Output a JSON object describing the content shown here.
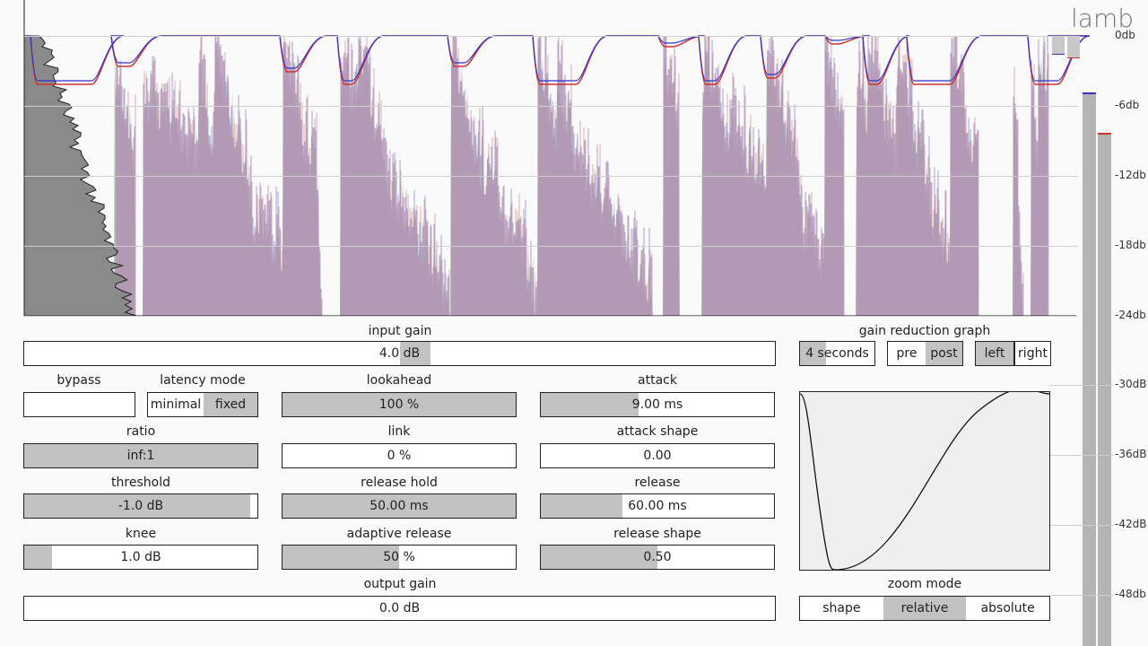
{
  "app_title": "lamb",
  "db_scale": [
    "0db",
    "-6db",
    "-12db",
    "-18db",
    "-24db",
    "-30dB",
    "-36dB",
    "-42dB",
    "-48db"
  ],
  "input_gain": {
    "label": "input gain",
    "value": "4.0 dB",
    "level": 0.52
  },
  "bypass": {
    "label": "bypass",
    "value": ""
  },
  "latency_mode": {
    "label": "latency mode",
    "options": [
      "minimal",
      "fixed"
    ],
    "selected": 1
  },
  "lookahead": {
    "label": "lookahead",
    "value": "100 %",
    "level": 1.0
  },
  "attack": {
    "label": "attack",
    "value": "9.00 ms",
    "level": 0.42
  },
  "ratio": {
    "label": "ratio",
    "value": "inf:1",
    "level": 1.0
  },
  "link": {
    "label": "link",
    "value": "0 %",
    "level": 0.0
  },
  "attack_shape": {
    "label": "attack shape",
    "value": "0.00",
    "level": 0.0
  },
  "threshold": {
    "label": "threshold",
    "value": "-1.0 dB",
    "level": 0.97
  },
  "release_hold": {
    "label": "release hold",
    "value": "50.00 ms",
    "level": 1.0
  },
  "release": {
    "label": "release",
    "value": "60.00 ms",
    "level": 0.35
  },
  "knee": {
    "label": "knee",
    "value": "1.0 dB",
    "level": 0.12
  },
  "adaptive_release": {
    "label": "adaptive release",
    "value": "50 %",
    "level": 0.5
  },
  "release_shape": {
    "label": "release shape",
    "value": "0.50",
    "level": 0.5
  },
  "output_gain": {
    "label": "output gain",
    "value": "0.0 dB",
    "level": 0.0
  },
  "gain_reduction_graph": {
    "label": "gain reduction graph",
    "duration": {
      "label": "4 seconds",
      "level": 0.35
    },
    "prepost": {
      "options": [
        "pre",
        "post"
      ],
      "selected": 1
    },
    "channel": {
      "options": [
        "left",
        "right"
      ],
      "selected": 0
    }
  },
  "zoom_mode": {
    "label": "zoom mode",
    "options": [
      "shape",
      "relative",
      "absolute"
    ],
    "selected": 1
  },
  "colors": {
    "left": "#3333cc",
    "right": "#cc3333",
    "fill": "#b4b4b4"
  }
}
